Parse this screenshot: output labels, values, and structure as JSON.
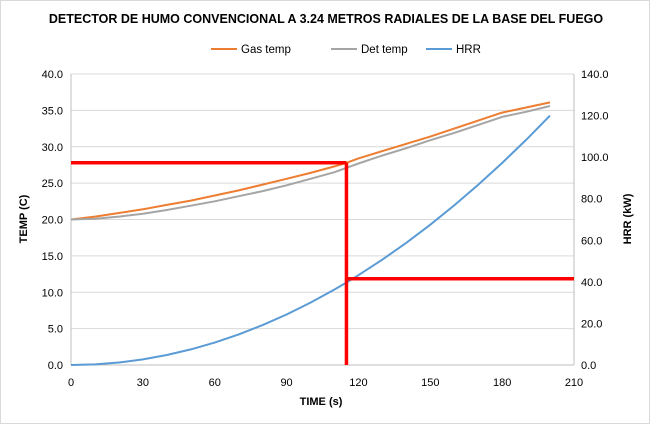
{
  "chart_data": {
    "type": "line",
    "title": "DETECTOR DE HUMO CONVENCIONAL A 3.24 METROS RADIALES DE LA BASE DEL FUEGO",
    "xlabel": "TIME (s)",
    "ylabel": "TEMP (C)",
    "y2label": "HRR (kW)",
    "xlim": [
      0,
      210
    ],
    "ylim": [
      0,
      40
    ],
    "y2lim": [
      0,
      140
    ],
    "x_ticks": [
      "0",
      "30",
      "60",
      "90",
      "120",
      "150",
      "180",
      "210"
    ],
    "y_ticks": [
      "0.0",
      "5.0",
      "10.0",
      "15.0",
      "20.0",
      "25.0",
      "30.0",
      "35.0",
      "40.0"
    ],
    "y2_ticks": [
      "0.0",
      "20.0",
      "40.0",
      "60.0",
      "80.0",
      "100.0",
      "120.0",
      "140.0"
    ],
    "grid": true,
    "legend_position": "top",
    "series": [
      {
        "name": "Gas temp",
        "axis": "left",
        "color": "#ED7D31",
        "x": [
          0,
          10,
          20,
          30,
          40,
          50,
          60,
          70,
          80,
          90,
          100,
          110,
          115,
          120,
          130,
          140,
          150,
          160,
          170,
          180,
          190,
          200
        ],
        "y": [
          20.0,
          20.4,
          20.9,
          21.4,
          22.0,
          22.6,
          23.3,
          24.0,
          24.8,
          25.6,
          26.4,
          27.3,
          27.8,
          28.4,
          29.4,
          30.4,
          31.4,
          32.5,
          33.6,
          34.7,
          35.4,
          36.1
        ]
      },
      {
        "name": "Det temp",
        "axis": "left",
        "color": "#A5A5A5",
        "x": [
          0,
          10,
          20,
          30,
          40,
          50,
          60,
          70,
          80,
          90,
          100,
          110,
          115,
          120,
          130,
          140,
          150,
          160,
          170,
          180,
          190,
          200
        ],
        "y": [
          20.0,
          20.1,
          20.4,
          20.8,
          21.3,
          21.9,
          22.5,
          23.2,
          23.9,
          24.7,
          25.6,
          26.5,
          27.1,
          27.7,
          28.8,
          29.8,
          30.9,
          31.9,
          33.0,
          34.1,
          34.8,
          35.6
        ]
      },
      {
        "name": "HRR",
        "axis": "right",
        "color": "#5B9BD5",
        "x": [
          0,
          10,
          20,
          30,
          40,
          50,
          60,
          70,
          80,
          90,
          100,
          110,
          115,
          120,
          130,
          140,
          150,
          160,
          170,
          180,
          190,
          200
        ],
        "y": [
          0.0,
          0.3,
          1.2,
          2.7,
          4.8,
          7.5,
          10.8,
          14.7,
          19.2,
          24.3,
          30.0,
          36.3,
          39.7,
          43.2,
          50.7,
          58.8,
          67.5,
          76.8,
          86.7,
          97.2,
          108.3,
          120.0
        ]
      }
    ],
    "annotations": [
      {
        "type": "line",
        "color": "#FF0000",
        "axis": "left",
        "from": [
          0,
          27.8
        ],
        "to": [
          115,
          27.8
        ]
      },
      {
        "type": "line",
        "color": "#FF0000",
        "axis": "left",
        "from": [
          115,
          0
        ],
        "to": [
          115,
          27.8
        ]
      },
      {
        "type": "line",
        "color": "#FF0000",
        "axis": "right",
        "from": [
          115,
          41.5
        ],
        "to": [
          210,
          41.5
        ]
      }
    ]
  }
}
